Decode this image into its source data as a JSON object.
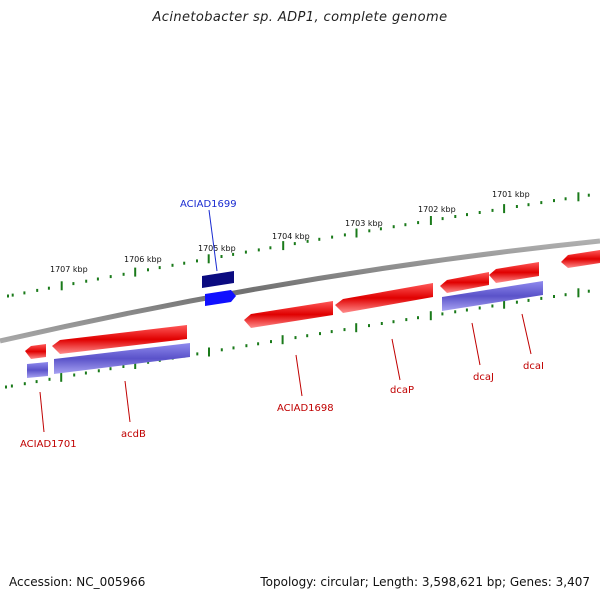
{
  "title": "Acinetobacter sp. ADP1, complete genome",
  "footer": {
    "accession": "Accession: NC_005966",
    "summary": "Topology: circular; Length: 3,598,621 bp; Genes: 3,407"
  },
  "colors": {
    "forward_gene": "#e00000",
    "reverse_gene": "#6a63d6",
    "highlight_gene_dark": "#0b0b80",
    "highlight_gene_bright": "#1010ff",
    "backbone": "#808080",
    "tick": "#1a7a1a",
    "label_red": "#c00000",
    "label_blue": "#1a2bd1"
  },
  "scale_labels": [
    "1707 kbp",
    "1706 kbp",
    "1705 kbp",
    "1704 kbp",
    "1703 kbp",
    "1702 kbp",
    "1701 kbp"
  ],
  "gene_labels": [
    "ACIAD1699",
    "ACIAD1701",
    "acdB",
    "ACIAD1698",
    "dcaP",
    "dcaJ",
    "dcaI"
  ]
}
